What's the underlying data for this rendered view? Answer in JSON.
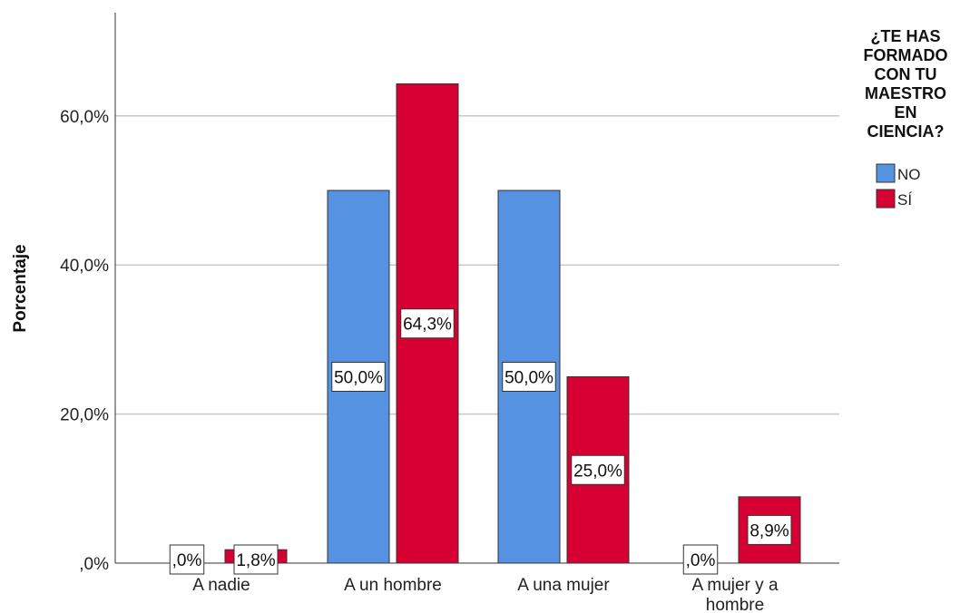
{
  "chart_data": {
    "type": "bar",
    "title": "",
    "xlabel": "",
    "ylabel": "Porcentaje",
    "categories": [
      "A nadie",
      "A un hombre",
      "A una mujer",
      "A mujer y a hombre"
    ],
    "series": [
      {
        "name": "NO",
        "values": [
          0,
          50.0,
          50.0,
          0
        ],
        "labels": [
          ",0%",
          "50,0%",
          "50,0%",
          ",0%"
        ]
      },
      {
        "name": "SÍ",
        "values": [
          1.8,
          64.3,
          25.0,
          8.9
        ],
        "labels": [
          "1,8%",
          "64,3%",
          "25,0%",
          "8,9%"
        ]
      }
    ],
    "ylim": [
      0,
      73
    ],
    "yticks": [
      0,
      20,
      40,
      60
    ],
    "ytick_labels": [
      ",0%",
      "20,0%",
      "40,0%",
      "60,0%"
    ],
    "grid": true,
    "legend": {
      "title_lines": [
        "¿TE HAS",
        "FORMADO",
        "CON TU",
        "MAESTRO",
        "EN",
        "CIENCIA?"
      ],
      "placement": "right"
    },
    "colors": {
      "NO": "#5592e1",
      "SÍ": "#d60032"
    }
  }
}
